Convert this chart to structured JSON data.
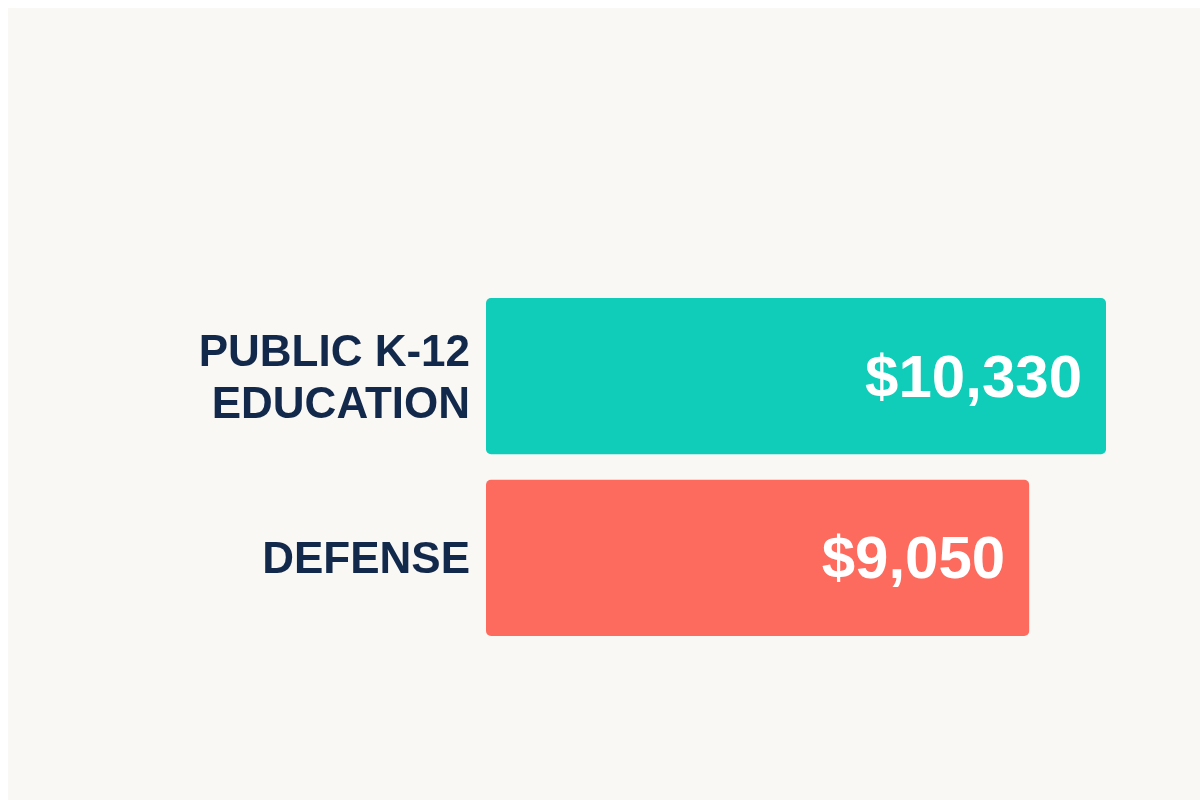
{
  "chart_data": {
    "type": "bar",
    "orientation": "horizontal",
    "categories": [
      "PUBLIC K-12 EDUCATION",
      "DEFENSE"
    ],
    "values": [
      10330,
      9050
    ],
    "colors": [
      "#0fcdb8",
      "#fd6b5f"
    ],
    "value_labels": [
      "$10,330",
      "$9,050"
    ]
  }
}
